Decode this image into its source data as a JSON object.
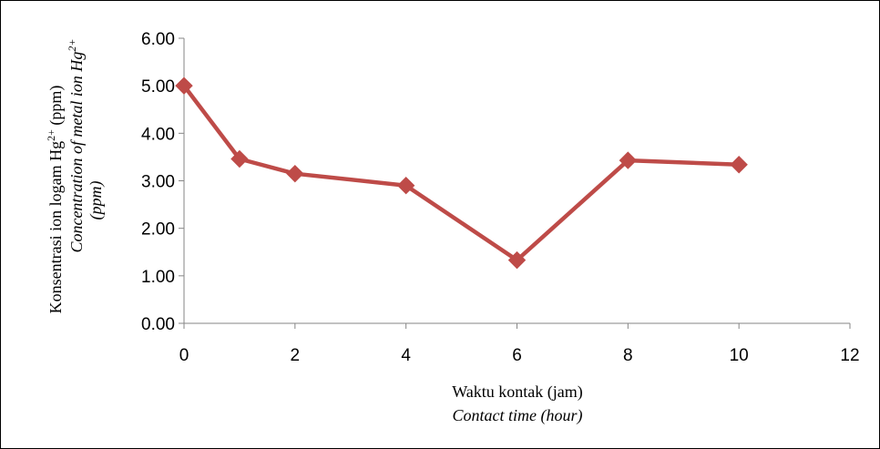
{
  "chart_data": {
    "type": "line",
    "title": "",
    "x": [
      0,
      1,
      2,
      4,
      6,
      8,
      10
    ],
    "series": [
      {
        "values": [
          5.0,
          3.46,
          3.15,
          2.9,
          1.33,
          3.43,
          3.34
        ]
      }
    ],
    "xlim": [
      0,
      12
    ],
    "ylim": [
      0,
      6
    ],
    "x_ticks": [
      "0",
      "2",
      "4",
      "6",
      "8",
      "10",
      "12"
    ],
    "y_ticks": [
      "0.00",
      "1.00",
      "2.00",
      "3.00",
      "4.00",
      "5.00",
      "6.00"
    ],
    "xlabel": {
      "primary": "Waktu kontak (jam)",
      "secondary": "Contact time (hour)"
    },
    "ylabel": {
      "primary_prefix": "Konsentrasi ion logam Hg",
      "primary_sup": "2+",
      "primary_suffix": " (ppm)",
      "secondary_prefix": "Concentration of metal ion Hg",
      "secondary_sup": "2+",
      "secondary_line2": "(ppm)"
    },
    "grid": false,
    "legend": "none",
    "series_color": "#BE4B48",
    "marker": "diamond"
  }
}
